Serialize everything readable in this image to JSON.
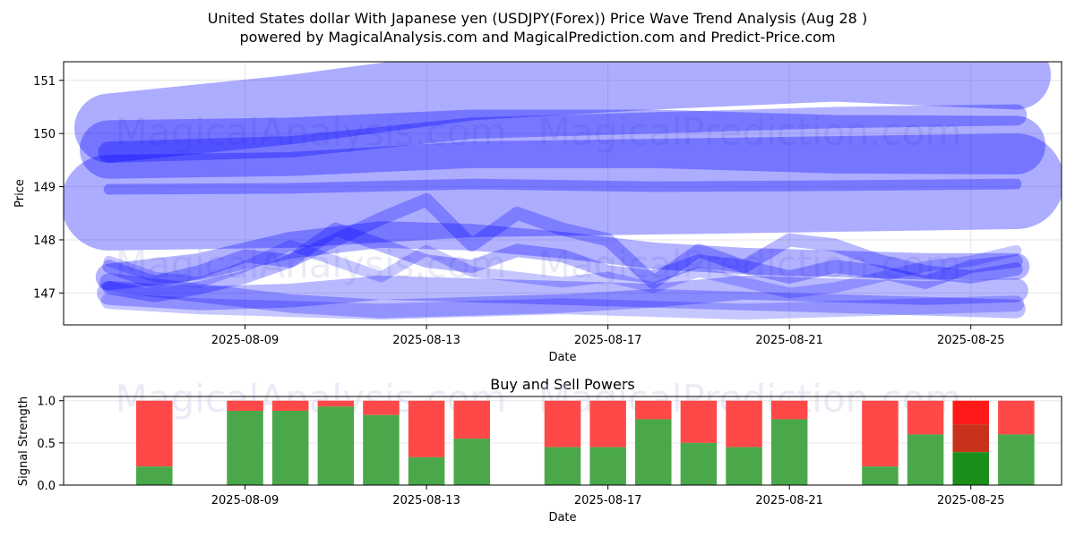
{
  "figure": {
    "title_line1": "United States dollar With Japanese yen (USDJPY(Forex)) Price Wave Trend Analysis (Aug 28 )",
    "title_line2": "powered by MagicalAnalysis.com and MagicalPrediction.com and Predict-Price.com",
    "watermarks": [
      "MagicalAnalysis.com",
      "MagicalPrediction.com"
    ]
  },
  "chart_data": [
    {
      "type": "line",
      "title": "",
      "xlabel": "Date",
      "ylabel": "Price",
      "xlim": [
        "2025-08-05",
        "2025-08-27"
      ],
      "ylim": [
        146.4,
        151.35
      ],
      "x_ticks": [
        "2025-08-09",
        "2025-08-13",
        "2025-08-17",
        "2025-08-21",
        "2025-08-25"
      ],
      "y_ticks": [
        147,
        148,
        149,
        150,
        151
      ],
      "grid": true,
      "colors": {
        "band": "#0000ff"
      },
      "series": [
        {
          "x": [
            "2025-08-06",
            "2025-08-10",
            "2025-08-14",
            "2025-08-18",
            "2025-08-22",
            "2025-08-26"
          ],
          "values": [
            150.1,
            150.45,
            150.9,
            151.1,
            151.25,
            151.1
          ],
          "width": 1.3,
          "alpha": 0.32
        },
        {
          "x": [
            "2025-08-06",
            "2025-08-10",
            "2025-08-14",
            "2025-08-18",
            "2025-08-22",
            "2025-08-26"
          ],
          "values": [
            149.7,
            149.75,
            149.9,
            149.9,
            149.8,
            149.78
          ],
          "width": 1.1,
          "alpha": 0.32
        },
        {
          "x": [
            "2025-08-06",
            "2025-08-10",
            "2025-08-14",
            "2025-08-18",
            "2025-08-22",
            "2025-08-26"
          ],
          "values": [
            148.7,
            148.75,
            148.95,
            149.0,
            149.05,
            149.1
          ],
          "width": 1.8,
          "alpha": 0.32
        },
        {
          "x": [
            "2025-08-06",
            "2025-08-10",
            "2025-08-14",
            "2025-08-18",
            "2025-08-22",
            "2025-08-26"
          ],
          "values": [
            149.65,
            149.75,
            150.1,
            150.2,
            150.3,
            150.35
          ],
          "width": 0.4,
          "alpha": 0.3
        },
        {
          "x": [
            "2025-08-06",
            "2025-08-10",
            "2025-08-14",
            "2025-08-18",
            "2025-08-22",
            "2025-08-26"
          ],
          "values": [
            148.95,
            148.97,
            149.05,
            149.0,
            149.02,
            149.05
          ],
          "width": 0.2,
          "alpha": 0.3
        },
        {
          "x": [
            "2025-08-06",
            "2025-08-08",
            "2025-08-10",
            "2025-08-12",
            "2025-08-14",
            "2025-08-16",
            "2025-08-18",
            "2025-08-20",
            "2025-08-22",
            "2025-08-24",
            "2025-08-26"
          ],
          "values": [
            147.3,
            147.5,
            147.9,
            148.1,
            148.05,
            147.9,
            147.7,
            147.6,
            147.55,
            147.5,
            147.5
          ],
          "width": 0.5,
          "alpha": 0.3
        },
        {
          "x": [
            "2025-08-06",
            "2025-08-07",
            "2025-08-08",
            "2025-08-09",
            "2025-08-10",
            "2025-08-11",
            "2025-08-12",
            "2025-08-13",
            "2025-08-14",
            "2025-08-15",
            "2025-08-16",
            "2025-08-17",
            "2025-08-18",
            "2025-08-19",
            "2025-08-20",
            "2025-08-21",
            "2025-08-22",
            "2025-08-23",
            "2025-08-24",
            "2025-08-25",
            "2025-08-26"
          ],
          "values": [
            147.1,
            146.95,
            147.1,
            147.3,
            147.6,
            148.0,
            148.4,
            148.75,
            147.9,
            148.5,
            148.2,
            148.0,
            147.2,
            147.8,
            147.5,
            148.0,
            147.9,
            147.6,
            147.4,
            147.3,
            147.45
          ],
          "width": 0.25,
          "alpha": 0.28
        },
        {
          "x": [
            "2025-08-06",
            "2025-08-07",
            "2025-08-08",
            "2025-08-09",
            "2025-08-10",
            "2025-08-11",
            "2025-08-12",
            "2025-08-13",
            "2025-08-14",
            "2025-08-15",
            "2025-08-16",
            "2025-08-17",
            "2025-08-18",
            "2025-08-19",
            "2025-08-20",
            "2025-08-21",
            "2025-08-22",
            "2025-08-23",
            "2025-08-24",
            "2025-08-25",
            "2025-08-26"
          ],
          "values": [
            147.5,
            147.2,
            147.4,
            147.7,
            147.6,
            148.2,
            147.9,
            147.6,
            147.5,
            147.8,
            147.7,
            147.4,
            147.3,
            147.6,
            147.5,
            147.3,
            147.5,
            147.4,
            147.2,
            147.5,
            147.6
          ],
          "width": 0.25,
          "alpha": 0.28
        },
        {
          "x": [
            "2025-08-06",
            "2025-08-08",
            "2025-08-10",
            "2025-08-12",
            "2025-08-14",
            "2025-08-16",
            "2025-08-18",
            "2025-08-20",
            "2025-08-22",
            "2025-08-24",
            "2025-08-26"
          ],
          "values": [
            147.0,
            146.9,
            146.95,
            147.1,
            147.05,
            147.0,
            146.95,
            147.1,
            147.05,
            147.0,
            147.05
          ],
          "width": 0.45,
          "alpha": 0.28
        },
        {
          "x": [
            "2025-08-06",
            "2025-08-08",
            "2025-08-10",
            "2025-08-12",
            "2025-08-14",
            "2025-08-16",
            "2025-08-18",
            "2025-08-20",
            "2025-08-22",
            "2025-08-24",
            "2025-08-26"
          ],
          "values": [
            147.2,
            147.0,
            146.8,
            146.7,
            146.75,
            146.8,
            146.9,
            146.85,
            146.8,
            146.75,
            146.7
          ],
          "width": 0.35,
          "alpha": 0.26
        },
        {
          "x": [
            "2025-08-06",
            "2025-08-07",
            "2025-08-08",
            "2025-08-09",
            "2025-08-10",
            "2025-08-11",
            "2025-08-12",
            "2025-08-13",
            "2025-08-14",
            "2025-08-15",
            "2025-08-16",
            "2025-08-17",
            "2025-08-18",
            "2025-08-19",
            "2025-08-20",
            "2025-08-21",
            "2025-08-22",
            "2025-08-23",
            "2025-08-24",
            "2025-08-25",
            "2025-08-26"
          ],
          "values": [
            147.6,
            147.3,
            147.2,
            147.5,
            147.9,
            147.6,
            147.3,
            147.8,
            147.4,
            147.3,
            147.2,
            147.3,
            147.1,
            147.4,
            147.2,
            147.0,
            147.1,
            147.3,
            147.5,
            147.6,
            147.8
          ],
          "width": 0.2,
          "alpha": 0.22
        },
        {
          "x": [
            "2025-08-06",
            "2025-08-08",
            "2025-08-10",
            "2025-08-12",
            "2025-08-14",
            "2025-08-16",
            "2025-08-18",
            "2025-08-20",
            "2025-08-22",
            "2025-08-24",
            "2025-08-26"
          ],
          "values": [
            146.85,
            146.75,
            146.7,
            146.65,
            146.7,
            146.75,
            146.7,
            146.65,
            146.7,
            146.75,
            146.8
          ],
          "width": 0.3,
          "alpha": 0.22
        }
      ]
    },
    {
      "type": "bar",
      "title": "Buy and Sell Powers",
      "xlabel": "Date",
      "ylabel": "Signal Strength",
      "xlim": [
        "2025-08-05",
        "2025-08-27"
      ],
      "ylim": [
        0,
        1.05
      ],
      "x_ticks": [
        "2025-08-09",
        "2025-08-13",
        "2025-08-17",
        "2025-08-21",
        "2025-08-25"
      ],
      "y_ticks": [
        "0.0",
        "0.5",
        "1.0"
      ],
      "grid": true,
      "colors": {
        "buy": "#4aa84a",
        "sell": "#ff4848"
      },
      "bars": [
        {
          "date": "2025-08-07",
          "buy": 0.22,
          "sell": 0.78
        },
        {
          "date": "2025-08-09",
          "buy": 0.88,
          "sell": 0.12
        },
        {
          "date": "2025-08-10",
          "buy": 0.88,
          "sell": 0.12
        },
        {
          "date": "2025-08-11",
          "buy": 0.93,
          "sell": 0.07
        },
        {
          "date": "2025-08-12",
          "buy": 0.83,
          "sell": 0.17
        },
        {
          "date": "2025-08-13",
          "buy": 0.33,
          "sell": 0.67
        },
        {
          "date": "2025-08-14",
          "buy": 0.55,
          "sell": 0.45
        },
        {
          "date": "2025-08-16",
          "buy": 0.45,
          "sell": 0.55
        },
        {
          "date": "2025-08-17",
          "buy": 0.45,
          "sell": 0.55
        },
        {
          "date": "2025-08-18",
          "buy": 0.78,
          "sell": 0.22
        },
        {
          "date": "2025-08-19",
          "buy": 0.5,
          "sell": 0.5
        },
        {
          "date": "2025-08-20",
          "buy": 0.45,
          "sell": 0.55
        },
        {
          "date": "2025-08-21",
          "buy": 0.78,
          "sell": 0.22
        },
        {
          "date": "2025-08-23",
          "buy": 0.22,
          "sell": 0.78
        },
        {
          "date": "2025-08-24",
          "buy": 0.6,
          "sell": 0.4
        },
        {
          "date": "2025-08-25",
          "buy": 0.39,
          "sell": 0.61,
          "highlight": true
        },
        {
          "date": "2025-08-26",
          "buy": 0.6,
          "sell": 0.4
        }
      ],
      "highlight_colors": {
        "buy": "#1a8f1a",
        "mid": "#c8321a",
        "sell": "#ff1a1a"
      }
    }
  ]
}
